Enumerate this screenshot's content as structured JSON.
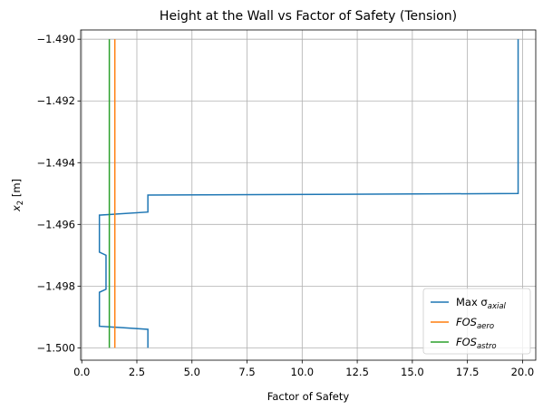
{
  "chart_data": {
    "type": "line",
    "title": "Height at the Wall vs Factor of Safety (Tension)",
    "xlabel": "Factor of Safety",
    "ylabel_main": "x",
    "ylabel_sub": "2",
    "ylabel_unit": " [m]",
    "xlim": [
      -0.05,
      20.6
    ],
    "ylim": [
      -1.5004,
      -1.4897
    ],
    "xticks": [
      0.0,
      2.5,
      5.0,
      7.5,
      10.0,
      12.5,
      15.0,
      17.5,
      20.0
    ],
    "xtick_labels": [
      "0.0",
      "2.5",
      "5.0",
      "7.5",
      "10.0",
      "12.5",
      "15.0",
      "17.5",
      "20.0"
    ],
    "yticks": [
      -1.49,
      -1.492,
      -1.494,
      -1.496,
      -1.498,
      -1.5
    ],
    "ytick_labels": [
      "−1.490",
      "−1.492",
      "−1.494",
      "−1.496",
      "−1.498",
      "−1.500"
    ],
    "grid": true,
    "legend_position": "lower-right",
    "series": [
      {
        "name_main": "Max σ",
        "name_sub": "axial",
        "color": "#1f77b4",
        "points": [
          [
            3.0,
            -1.5
          ],
          [
            3.0,
            -1.4994
          ],
          [
            0.8,
            -1.4993
          ],
          [
            0.8,
            -1.4982
          ],
          [
            1.1,
            -1.4981
          ],
          [
            1.1,
            -1.497
          ],
          [
            0.8,
            -1.4969
          ],
          [
            0.8,
            -1.4957
          ],
          [
            3.0,
            -1.4956
          ],
          [
            3.0,
            -1.49505
          ],
          [
            19.8,
            -1.495
          ],
          [
            19.8,
            -1.49
          ]
        ]
      },
      {
        "name_main": "FOS",
        "name_sub": "aero",
        "color": "#ff7f0e",
        "points": [
          [
            1.5,
            -1.5
          ],
          [
            1.5,
            -1.49
          ]
        ]
      },
      {
        "name_main": "FOS",
        "name_sub": "astro",
        "color": "#2ca02c",
        "points": [
          [
            1.25,
            -1.5
          ],
          [
            1.25,
            -1.49
          ]
        ]
      }
    ]
  }
}
